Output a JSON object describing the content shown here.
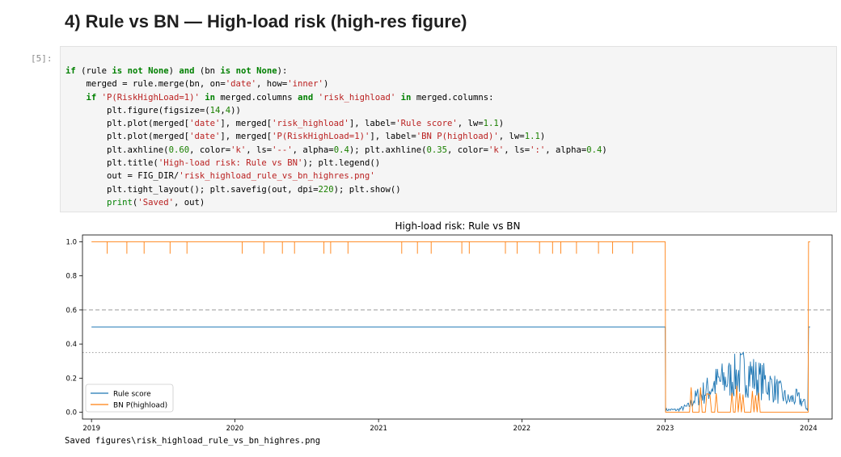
{
  "heading": "4) Rule vs BN — High-load risk (high-res figure)",
  "cell": {
    "prompt": "[5]:",
    "code_lines": [
      "if (rule is not None) and (bn is not None):",
      "    merged = rule.merge(bn, on='date', how='inner')",
      "    if 'P(RiskHighLoad=1)' in merged.columns and 'risk_highload' in merged.columns:",
      "        plt.figure(figsize=(14,4))",
      "        plt.plot(merged['date'], merged['risk_highload'], label='Rule score', lw=1.1)",
      "        plt.plot(merged['date'], merged['P(RiskHighLoad=1)'], label='BN P(highload)', lw=1.1)",
      "        plt.axhline(0.60, color='k', ls='--', alpha=0.4); plt.axhline(0.35, color='k', ls=':', alpha=0.4)",
      "        plt.title('High-load risk: Rule vs BN'); plt.legend()",
      "        out = FIG_DIR/'risk_highload_rule_vs_bn_highres.png'",
      "        plt.tight_layout(); plt.savefig(out, dpi=220); plt.show()",
      "        print('Saved', out)"
    ],
    "output_text": "Saved figures\\risk_highload_rule_vs_bn_highres.png"
  },
  "chart_data": {
    "type": "line",
    "title": "High-load risk: Rule vs BN",
    "xlabel": "",
    "ylabel": "",
    "x_ticks": [
      "2019",
      "2020",
      "2021",
      "2022",
      "2023",
      "2024"
    ],
    "y_ticks": [
      "0.0",
      "0.2",
      "0.4",
      "0.6",
      "0.8",
      "1.0"
    ],
    "xlim": [
      "2018-12-09",
      "2024-03-01"
    ],
    "ylim": [
      -0.04,
      1.04
    ],
    "grid": false,
    "legend_position": "lower-left",
    "reference_lines": [
      {
        "y": 0.6,
        "style": "dashed",
        "color": "#000000",
        "alpha": 0.4
      },
      {
        "y": 0.35,
        "style": "dotted",
        "color": "#000000",
        "alpha": 0.4
      }
    ],
    "series": [
      {
        "name": "Rule score",
        "color": "#1f77b4",
        "points": [
          [
            "2019-01-01",
            0.5
          ],
          [
            "2023-01-01",
            0.5
          ],
          [
            "2023-01-02",
            0.02
          ],
          [
            "2023-02-01",
            0.02
          ],
          [
            "2023-03-01",
            0.05
          ],
          [
            "2023-03-20",
            0.12
          ],
          [
            "2023-04-15",
            0.18
          ],
          [
            "2023-05-15",
            0.25
          ],
          [
            "2023-06-15",
            0.28
          ],
          [
            "2023-07-10",
            0.32
          ],
          [
            "2023-08-01",
            0.34
          ],
          [
            "2023-08-20",
            0.28
          ],
          [
            "2023-09-15",
            0.25
          ],
          [
            "2023-10-15",
            0.18
          ],
          [
            "2023-11-10",
            0.1
          ],
          [
            "2023-12-01",
            0.12
          ],
          [
            "2023-12-20",
            0.08
          ],
          [
            "2023-12-30",
            0.02
          ],
          [
            "2024-01-01",
            0.5
          ],
          [
            "2024-01-05",
            0.5
          ]
        ]
      },
      {
        "name": "BN P(highload)",
        "color": "#ff7f0e",
        "points": [
          [
            "2019-01-01",
            1.0
          ],
          [
            "2023-01-01",
            1.0
          ],
          [
            "2023-01-02",
            0.0
          ],
          [
            "2023-12-31",
            0.0
          ],
          [
            "2024-01-01",
            1.0
          ],
          [
            "2024-01-05",
            1.0
          ]
        ],
        "dips_to_zero_approx": [
          "2019-02-10",
          "2019-04-01",
          "2019-05-15",
          "2019-07-20",
          "2019-09-01",
          "2020-01-20",
          "2020-03-15",
          "2020-05-01",
          "2020-06-01",
          "2020-08-15",
          "2020-09-01",
          "2020-10-15",
          "2021-03-01",
          "2021-04-10",
          "2021-05-15",
          "2021-08-01",
          "2021-08-20",
          "2021-11-20",
          "2021-12-20",
          "2022-02-15",
          "2022-03-20",
          "2022-04-10",
          "2022-05-20",
          "2022-07-15",
          "2022-08-20",
          "2022-10-10"
        ]
      }
    ]
  }
}
